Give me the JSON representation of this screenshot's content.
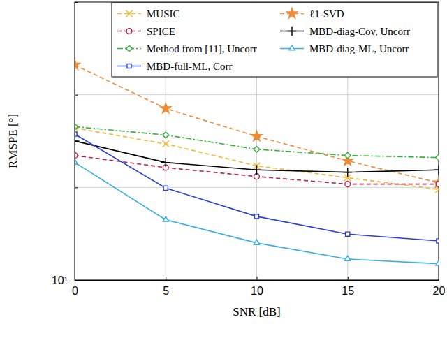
{
  "chart_data": {
    "type": "line",
    "x_label": "SNR [dB]",
    "y_label": "RMSPE [°]",
    "x": [
      0,
      5,
      10,
      15,
      20
    ],
    "xlim": [
      0,
      20
    ],
    "xticks": [
      0,
      5,
      10,
      15,
      20
    ],
    "ylim": [
      10,
      80
    ],
    "yticks": [
      {
        "value": 10,
        "label": "10¹"
      },
      {
        "value": 20,
        "label": null
      },
      {
        "value": 40,
        "label": null
      }
    ],
    "log": "y",
    "grid": true,
    "legend": "top",
    "series": [
      {
        "name": "MUSIC",
        "color": "#f2b830",
        "marker": "x",
        "line_style": "dashed",
        "values": [
          31.2,
          27.7,
          23.5,
          21.5,
          19.7
        ]
      },
      {
        "name": "ℓ1-SVD",
        "color": "#ef8a35",
        "marker": "star",
        "line_style": "dashed",
        "values": [
          50,
          36.1,
          29.3,
          24.4,
          20.7
        ]
      },
      {
        "name": "SPICE",
        "color": "#b5214b",
        "marker": "circle",
        "line_style": "dashed",
        "values": [
          25.4,
          23.2,
          21.7,
          20.5,
          20.5
        ]
      },
      {
        "name": "MBD-diag-Cov, Uncorr",
        "color": "#000000",
        "marker": "plus",
        "line_style": "solid",
        "values": [
          28.3,
          24.1,
          22.8,
          22.4,
          22.8
        ]
      },
      {
        "name": "Method from [11], Uncorr",
        "color": "#33b03a",
        "marker": "diamond",
        "line_style": "dashdot",
        "values": [
          31.5,
          29.6,
          26.6,
          25.4,
          25.0
        ]
      },
      {
        "name": "MBD-diag-ML, Uncorr",
        "color": "#3aafe0",
        "marker": "triangle",
        "line_style": "solid",
        "values": [
          24.1,
          15.7,
          13.2,
          11.7,
          11.3
        ]
      },
      {
        "name": "MBD-full-ML, Corr",
        "color": "#2a3fd4",
        "marker": "square",
        "line_style": "solid",
        "values": [
          29.8,
          19.9,
          16.1,
          14.1,
          13.4
        ]
      }
    ]
  }
}
